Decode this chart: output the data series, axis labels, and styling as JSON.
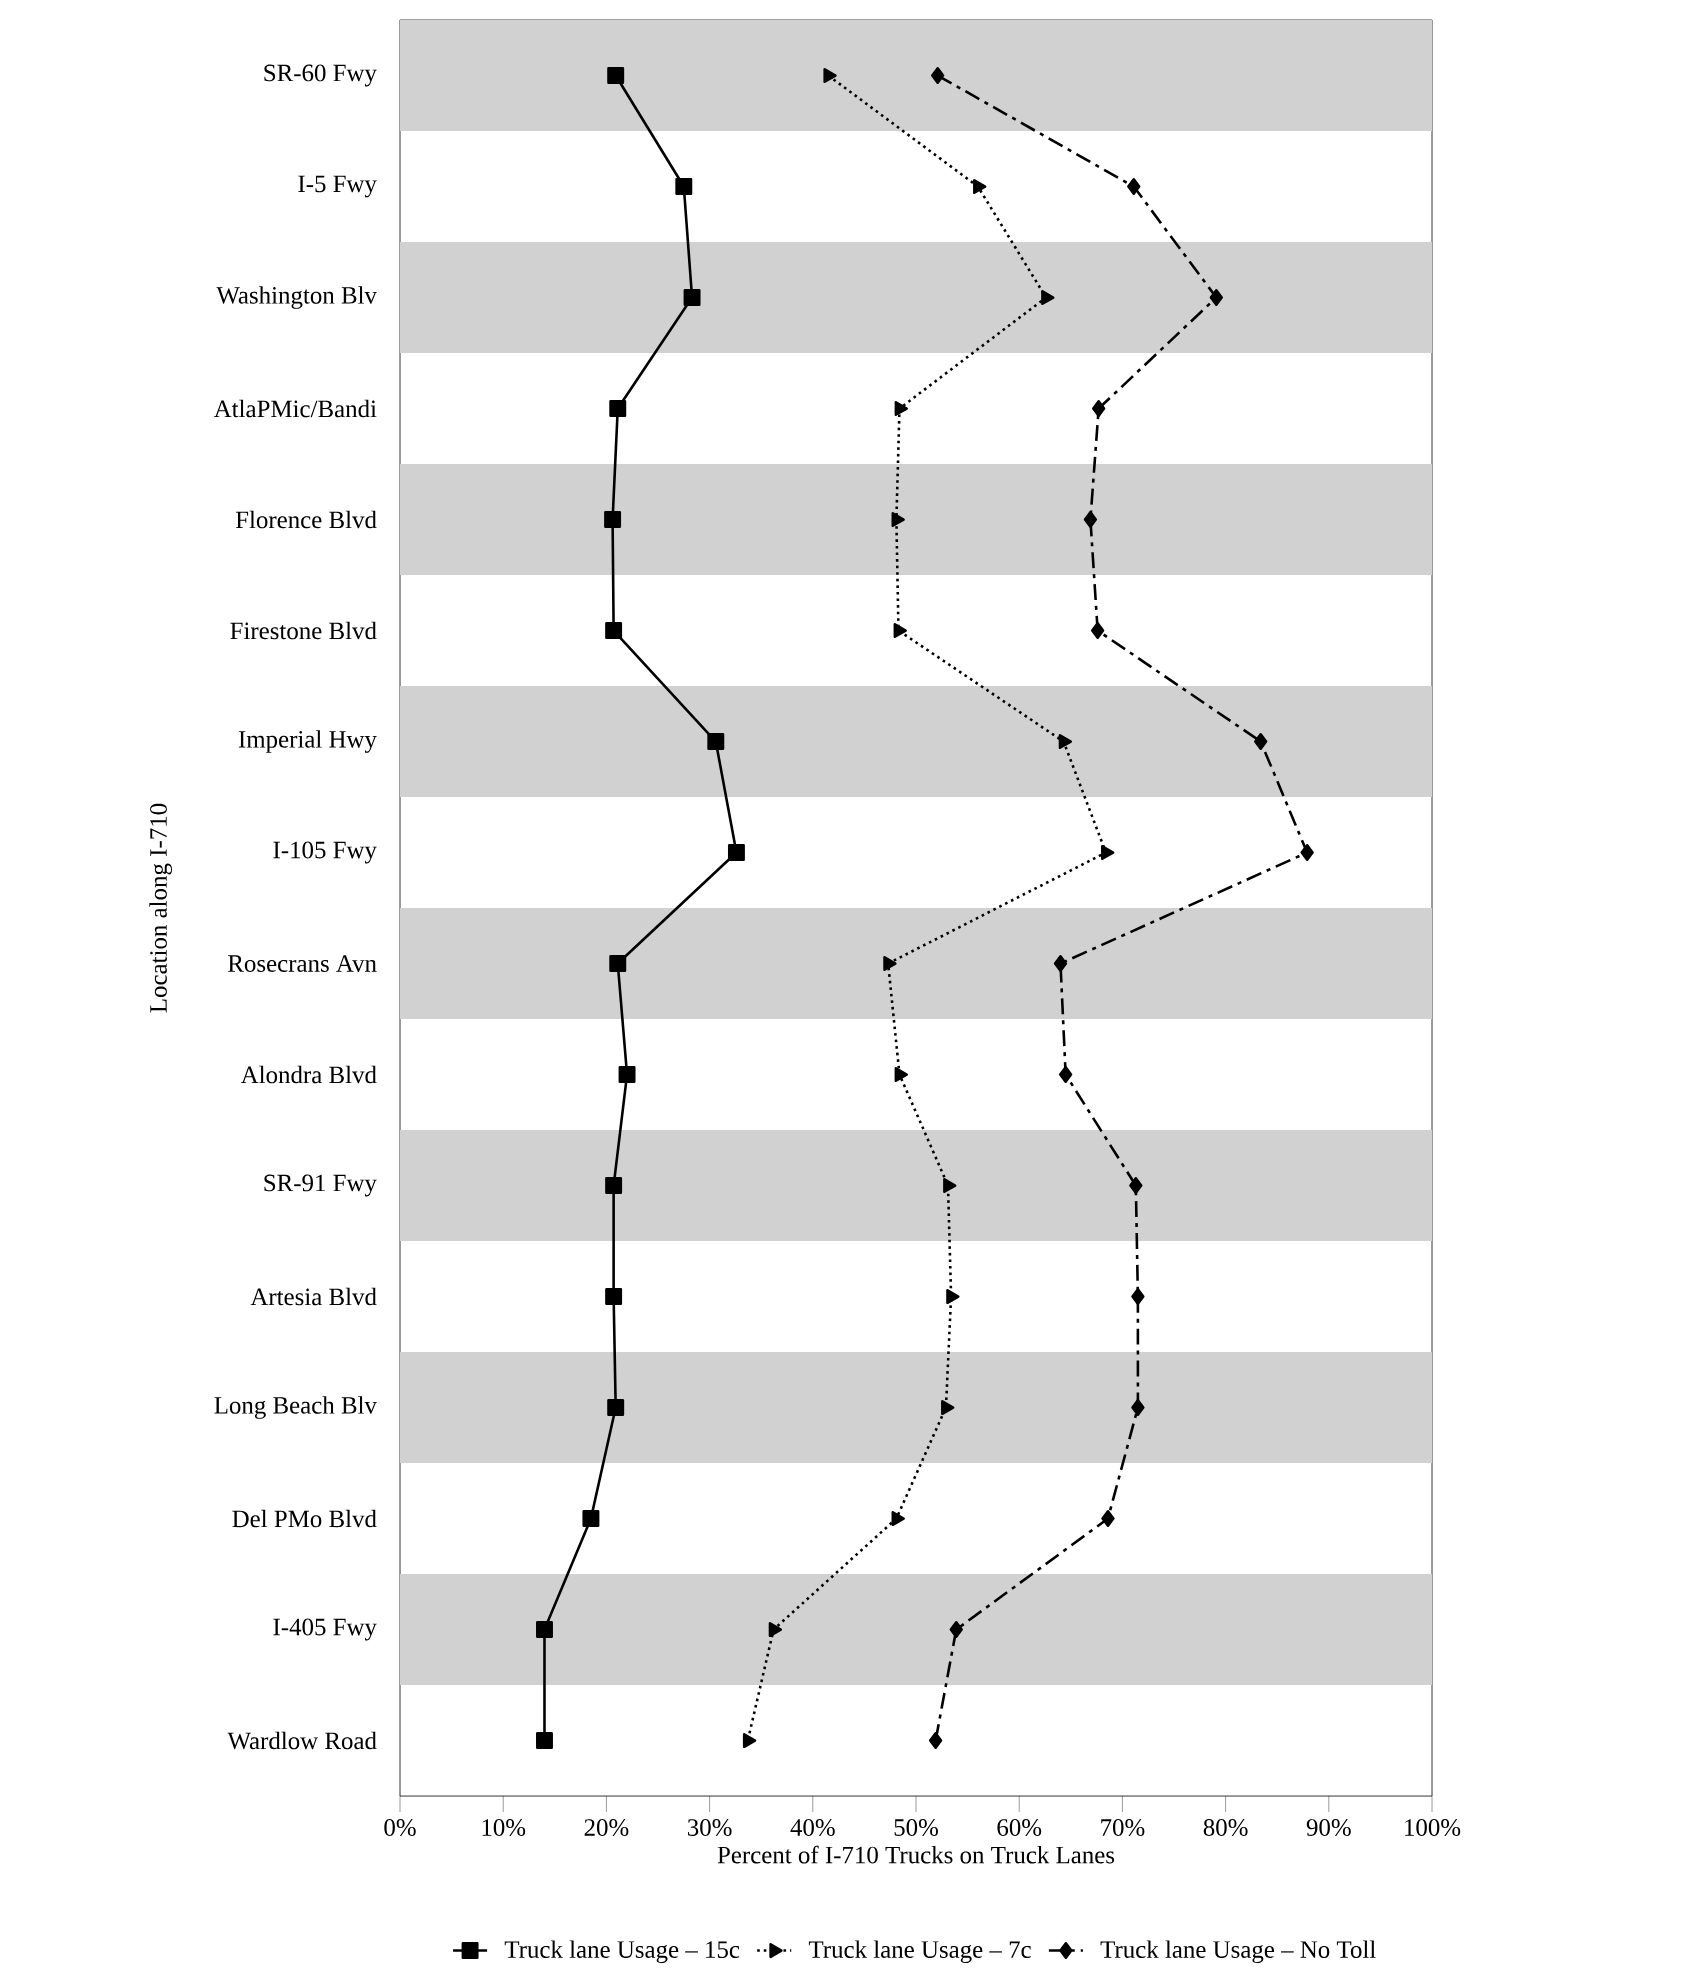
{
  "chart_data": {
    "type": "line",
    "orientation": "horizontal",
    "xlabel": "Percent of I-710 Trucks on Truck Lanes",
    "ylabel": "Location along I-710",
    "categories": [
      "SR-60 Fwy",
      "I-5 Fwy",
      "Washington Blv",
      "AtlaPMic/Bandi",
      "Florence Blvd",
      "Firestone Blvd",
      "Imperial Hwy",
      "I-105 Fwy",
      "Rosecrans Avn",
      "Alondra Blvd",
      "SR-91 Fwy",
      "Artesia Blvd",
      "Long Beach Blv",
      "Del PMo Blvd",
      "I-405 Fwy",
      "Wardlow Road"
    ],
    "xlim": [
      0,
      100
    ],
    "xticks": [
      {
        "value": 0,
        "label": "0%"
      },
      {
        "value": 10,
        "label": "10%"
      },
      {
        "value": 20,
        "label": "20%"
      },
      {
        "value": 30,
        "label": "30%"
      },
      {
        "value": 40,
        "label": "40%"
      },
      {
        "value": 50,
        "label": "50%"
      },
      {
        "value": 60,
        "label": "60%"
      },
      {
        "value": 70,
        "label": "70%"
      },
      {
        "value": 80,
        "label": "80%"
      },
      {
        "value": 90,
        "label": "90%"
      },
      {
        "value": 100,
        "label": "100%"
      }
    ],
    "series": [
      {
        "name": "Truck lane Usage – 15c",
        "color": "#000000",
        "marker": "square",
        "line_style": "solid",
        "values": [
          20.9,
          27.5,
          28.3,
          21.1,
          20.6,
          20.7,
          30.6,
          32.6,
          21.1,
          22.0,
          20.7,
          20.7,
          20.9,
          18.5,
          14.0,
          14.0
        ]
      },
      {
        "name": "Truck lane Usage – 7c",
        "color": "#000000",
        "marker": "triangle",
        "line_style": "dotted",
        "values": [
          41.5,
          56.0,
          62.6,
          48.4,
          48.1,
          48.3,
          64.3,
          68.4,
          47.3,
          48.4,
          53.1,
          53.4,
          52.9,
          48.1,
          36.2,
          33.7
        ]
      },
      {
        "name": "Truck lane Usage – No Toll",
        "color": "#000000",
        "marker": "diamond",
        "line_style": "dashdot",
        "values": [
          52.1,
          71.1,
          79.1,
          67.7,
          66.9,
          67.6,
          83.4,
          87.9,
          64.0,
          64.5,
          71.3,
          71.5,
          71.5,
          68.6,
          53.9,
          51.9
        ]
      }
    ],
    "grid": false,
    "legend": "bottom"
  }
}
